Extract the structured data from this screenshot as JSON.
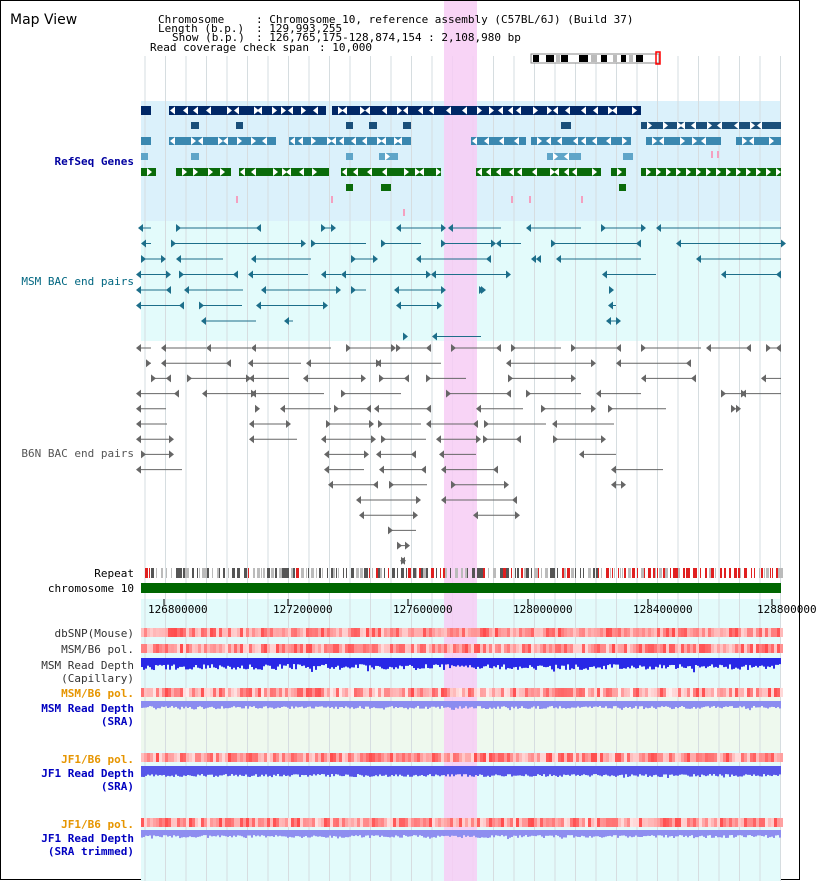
{
  "title": "Map View",
  "header": {
    "chromosome_key": "Chromosome",
    "chromosome_val": ": Chromosome 10, reference assembly (C57BL/6J) (Build 37)",
    "length_key": "Length (b.p.)",
    "length_val": ": 129,993,255",
    "show_key": "Show (b.p.)",
    "show_val": ": 126,765,175-128,874,154 : 2,108,980 bp",
    "coverage_key": "Read coverage check span",
    "coverage_val": ": 10,000"
  },
  "tracks": {
    "refseq": "RefSeq Genes",
    "msm_bac": "MSM BAC end pairs",
    "b6n_bac": "B6N BAC end pairs",
    "repeat": "Repeat",
    "chrom": "chromosome 10",
    "dbsnp": "dbSNP(Mouse)",
    "msm_b6_pol_1": "MSM/B6 pol.",
    "msm_depth_cap_1": "MSM Read Depth",
    "msm_depth_cap_2": "(Capillary)",
    "msm_b6_pol_2": "MSM/B6 pol.",
    "msm_depth_sra_1": "MSM Read Depth",
    "msm_depth_sra_2": "(SRA)",
    "jf1_b6_pol_1": "JF1/B6 pol.",
    "jf1_depth_sra_1": "JF1 Read Depth",
    "jf1_depth_sra_2": "(SRA)",
    "jf1_b6_pol_2": "JF1/B6 pol.",
    "jf1_depth_trim_1": "JF1 Read Depth",
    "jf1_depth_trim_2": "(SRA trimmed)"
  },
  "axis_ticks": [
    "126800000",
    "127200000",
    "127600000",
    "128000000",
    "128400000",
    "128800000"
  ],
  "colors": {
    "refseq_label": "#0000a0",
    "msm_label": "#006680",
    "b6n_label": "#555555",
    "pol_orange": "#e69500",
    "depth_blue": "#0000c0",
    "chrom_green": "#006600",
    "highlight_pink": "#f7ccf5"
  }
}
